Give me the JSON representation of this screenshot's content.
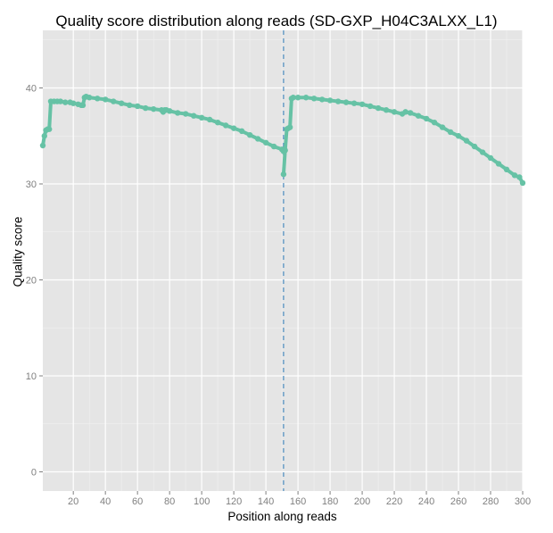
{
  "chart_data": {
    "type": "line",
    "title": "Quality score distribution along reads (SD-GXP_H04C3ALXX_L1)",
    "xlabel": "Position along reads",
    "ylabel": "Quality score",
    "xlim": [
      1,
      300
    ],
    "ylim": [
      -2,
      46
    ],
    "x_ticks": [
      20,
      40,
      60,
      80,
      100,
      120,
      140,
      160,
      180,
      200,
      220,
      240,
      260,
      280,
      300
    ],
    "y_ticks": [
      0,
      10,
      20,
      30,
      40
    ],
    "grid": true,
    "legend": "none",
    "read_boundary_x": 151,
    "colors": {
      "panel_background": "#e5e5e5",
      "grid_major": "#ffffff",
      "series": "#66c2a5",
      "boundary_line": "#4b8bbe",
      "tick_text": "#7f7f7f"
    },
    "series": [
      {
        "x": [
          1,
          2,
          3,
          4,
          5,
          6,
          8,
          10,
          12,
          15,
          18,
          20,
          23,
          25,
          26,
          27,
          28,
          30,
          35,
          40,
          45,
          50,
          55,
          60,
          65,
          70,
          75,
          76,
          77,
          78,
          80,
          85,
          90,
          95,
          100,
          105,
          110,
          115,
          120,
          125,
          130,
          135,
          140,
          145,
          150,
          151
        ],
        "y": [
          34.0,
          35.0,
          35.6,
          35.7,
          35.7,
          38.6,
          38.6,
          38.6,
          38.6,
          38.5,
          38.5,
          38.4,
          38.3,
          38.2,
          38.2,
          39.0,
          39.1,
          39.0,
          38.9,
          38.8,
          38.6,
          38.4,
          38.2,
          38.1,
          37.9,
          37.8,
          37.7,
          37.5,
          37.7,
          37.7,
          37.6,
          37.4,
          37.3,
          37.1,
          36.9,
          36.7,
          36.4,
          36.1,
          35.8,
          35.5,
          35.1,
          34.7,
          34.3,
          33.9,
          33.6,
          33.4
        ]
      },
      {
        "x": [
          151,
          152,
          153,
          154,
          155,
          156,
          157,
          160,
          165,
          170,
          175,
          180,
          185,
          190,
          195,
          200,
          205,
          210,
          215,
          220,
          225,
          227,
          230,
          235,
          240,
          245,
          250,
          255,
          260,
          265,
          270,
          275,
          280,
          285,
          290,
          295,
          298,
          300
        ],
        "y": [
          31.0,
          33.5,
          35.7,
          35.8,
          35.9,
          38.9,
          39.0,
          39.0,
          39.0,
          38.9,
          38.8,
          38.7,
          38.6,
          38.5,
          38.4,
          38.3,
          38.1,
          37.9,
          37.7,
          37.5,
          37.3,
          37.5,
          37.4,
          37.1,
          36.8,
          36.4,
          35.9,
          35.4,
          35.0,
          34.5,
          33.9,
          33.3,
          32.7,
          32.1,
          31.5,
          30.9,
          30.7,
          30.1
        ]
      }
    ]
  }
}
